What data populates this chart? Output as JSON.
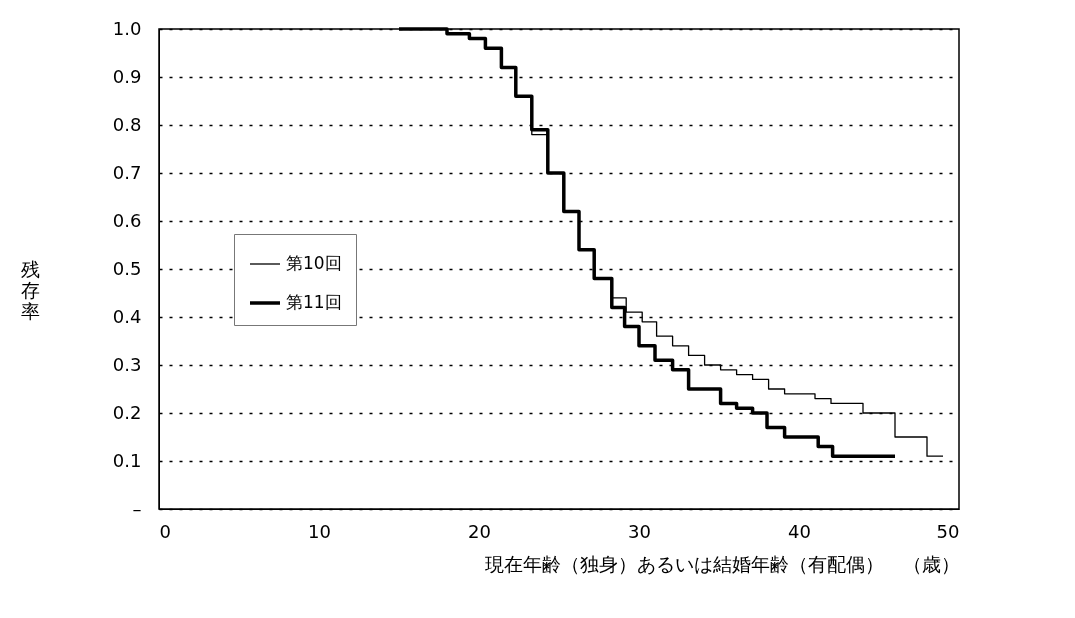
{
  "chart_data": {
    "type": "step",
    "xlabel": "現在年齢（独身）あるいは結婚年齢（有配偶）　（歳）",
    "ylabel": "残存率",
    "xlim": [
      0,
      50
    ],
    "xticks": [
      0,
      10,
      20,
      30,
      40,
      50
    ],
    "ylim": [
      0,
      1.0
    ],
    "yticks": [
      {
        "value": 0,
        "label": "–"
      },
      0.1,
      0.2,
      0.3,
      0.4,
      0.5,
      0.6,
      0.7,
      0.8,
      0.9,
      {
        "value": 1.0,
        "label": "1.0"
      }
    ],
    "grid": "y",
    "legend": "left",
    "marker": "none",
    "series": [
      {
        "name": "第10回",
        "color": "#000000",
        "line_style": "solid",
        "x": [
          15,
          18,
          19.4,
          20.4,
          21.4,
          22.3,
          23.3,
          24.3,
          25.3,
          26.25,
          27.2,
          28.3,
          29.2,
          30.2,
          31.1,
          32.1,
          33.1,
          34.1,
          35.1,
          36.1,
          37.1,
          38.1,
          39.1,
          41.0,
          42.0,
          44.0,
          46.0,
          48.0,
          49.0
        ],
        "values": [
          1.0,
          0.99,
          0.98,
          0.96,
          0.92,
          0.86,
          0.78,
          0.7,
          0.62,
          0.54,
          0.48,
          0.44,
          0.41,
          0.39,
          0.36,
          0.34,
          0.32,
          0.3,
          0.29,
          0.28,
          0.27,
          0.25,
          0.24,
          0.23,
          0.22,
          0.2,
          0.15,
          0.11,
          0.11
        ]
      },
      {
        "name": "第11回",
        "color": "#000000",
        "line_style": "solid",
        "x": [
          15,
          18,
          19.4,
          20.4,
          21.4,
          22.3,
          23.3,
          24.3,
          25.3,
          26.25,
          27.2,
          28.3,
          29.1,
          30.0,
          31.0,
          32.1,
          33.1,
          35.1,
          36.1,
          37.1,
          38.0,
          39.1,
          41.2,
          42.1,
          46.0
        ],
        "values": [
          1.0,
          0.99,
          0.98,
          0.96,
          0.92,
          0.86,
          0.79,
          0.7,
          0.62,
          0.54,
          0.48,
          0.42,
          0.38,
          0.34,
          0.31,
          0.29,
          0.25,
          0.22,
          0.21,
          0.2,
          0.17,
          0.15,
          0.13,
          0.11,
          0.11
        ]
      }
    ]
  }
}
